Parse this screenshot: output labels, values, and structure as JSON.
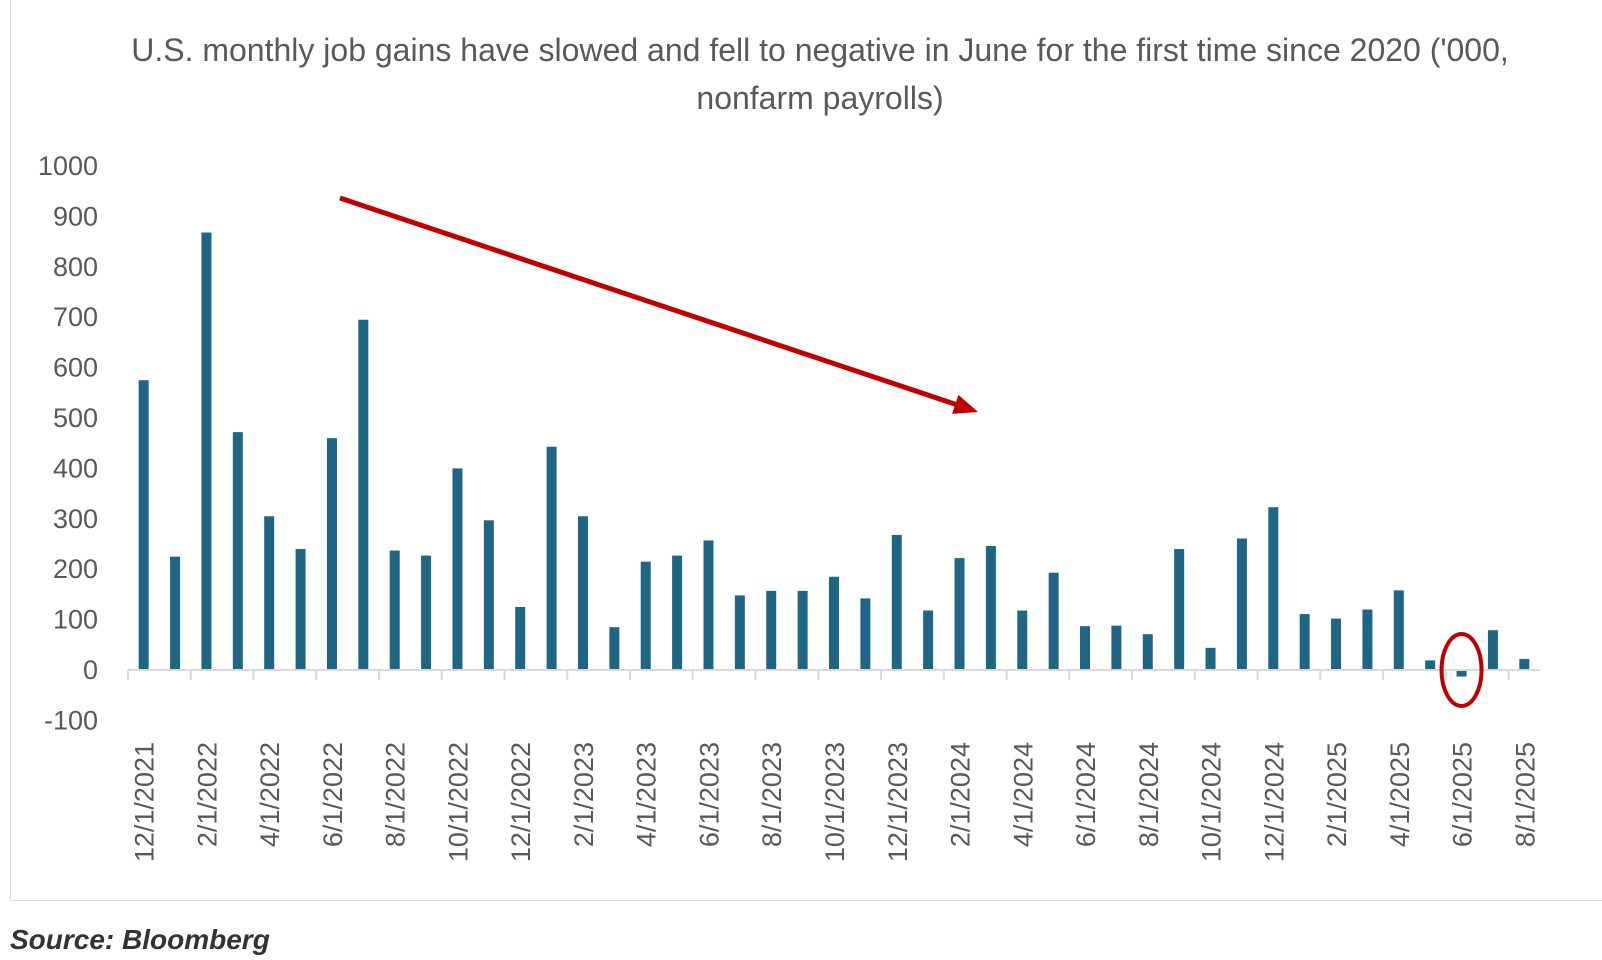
{
  "chart_data": {
    "type": "bar",
    "title": "U.S. monthly job gains have slowed and fell to negative in June for the first time since 2020 ('000, nonfarm payrolls)",
    "xlabel": "",
    "ylabel": "",
    "ylim": [
      -100,
      1000
    ],
    "yticks": [
      1000,
      900,
      800,
      700,
      600,
      500,
      400,
      300,
      200,
      100,
      0,
      -100
    ],
    "grid": false,
    "categories": [
      "12/1/2021",
      "1/1/2022",
      "2/1/2022",
      "3/1/2022",
      "4/1/2022",
      "5/1/2022",
      "6/1/2022",
      "7/1/2022",
      "8/1/2022",
      "9/1/2022",
      "10/1/2022",
      "11/1/2022",
      "12/1/2022",
      "1/1/2023",
      "2/1/2023",
      "3/1/2023",
      "4/1/2023",
      "5/1/2023",
      "6/1/2023",
      "7/1/2023",
      "8/1/2023",
      "9/1/2023",
      "10/1/2023",
      "11/1/2023",
      "12/1/2023",
      "1/1/2024",
      "2/1/2024",
      "3/1/2024",
      "4/1/2024",
      "5/1/2024",
      "6/1/2024",
      "7/1/2024",
      "8/1/2024",
      "9/1/2024",
      "10/1/2024",
      "11/1/2024",
      "12/1/2024",
      "1/1/2025",
      "2/1/2025",
      "3/1/2025",
      "4/1/2025",
      "5/1/2025",
      "6/1/2025",
      "7/1/2025",
      "8/1/2025"
    ],
    "x_tick_labels": [
      "12/1/2021",
      "2/1/2022",
      "4/1/2022",
      "6/1/2022",
      "8/1/2022",
      "10/1/2022",
      "12/1/2022",
      "2/1/2023",
      "4/1/2023",
      "6/1/2023",
      "8/1/2023",
      "10/1/2023",
      "12/1/2023",
      "2/1/2024",
      "4/1/2024",
      "6/1/2024",
      "8/1/2024",
      "10/1/2024",
      "12/1/2024",
      "2/1/2025",
      "4/1/2025",
      "6/1/2025",
      "8/1/2025"
    ],
    "values": [
      575,
      225,
      868,
      472,
      305,
      240,
      460,
      695,
      237,
      227,
      400,
      297,
      125,
      443,
      305,
      85,
      215,
      227,
      257,
      148,
      157,
      157,
      185,
      142,
      268,
      118,
      222,
      246,
      118,
      193,
      87,
      88,
      71,
      240,
      44,
      261,
      323,
      111,
      102,
      120,
      158,
      19,
      -13,
      79,
      22
    ],
    "series_color": "#1f6685",
    "annotations": [
      {
        "type": "arrow",
        "description": "downward trend arrow",
        "color": "#c00000"
      },
      {
        "type": "ellipse",
        "target_category": "6/1/2025",
        "color": "#c00000"
      }
    ]
  },
  "source": "Source: Bloomberg"
}
